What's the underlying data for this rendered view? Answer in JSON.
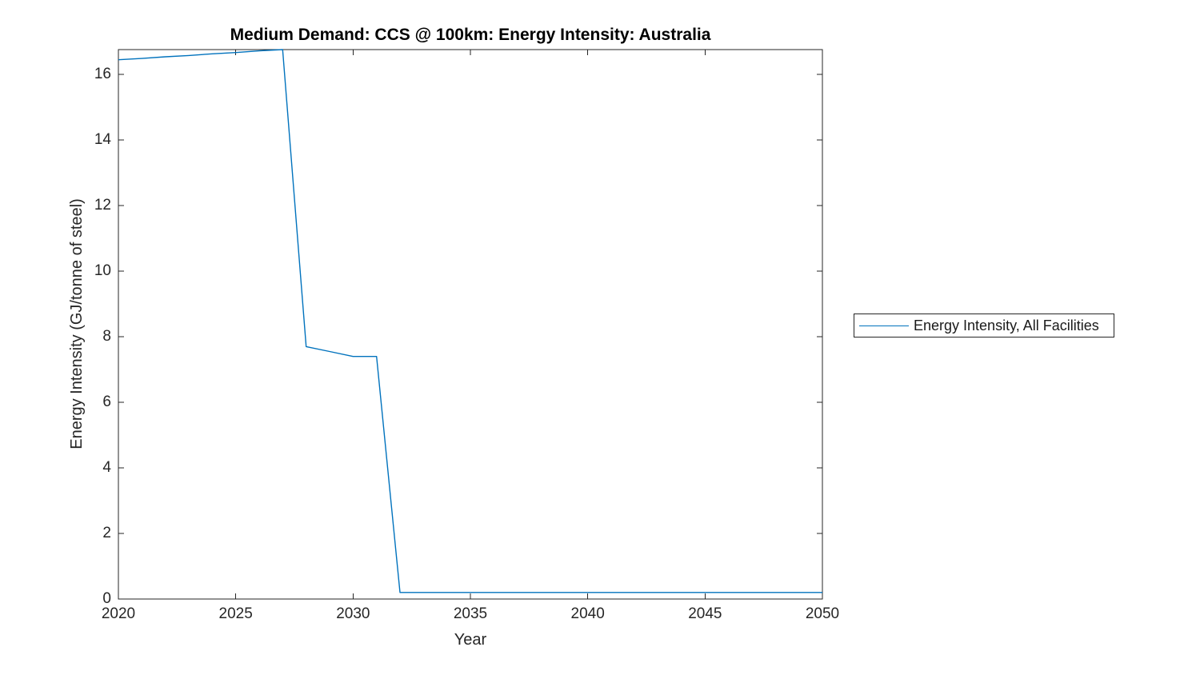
{
  "figure": {
    "background": "#ffffff"
  },
  "chart_data": {
    "type": "line",
    "title": "Medium Demand: CCS @ 100km: Energy Intensity: Australia",
    "xlabel": "Year",
    "ylabel": "Energy Intensity (GJ/tonne of steel)",
    "xlim": [
      2020,
      2050
    ],
    "ylim": [
      0,
      16.76
    ],
    "x_ticks": [
      2020,
      2025,
      2030,
      2035,
      2040,
      2045,
      2050
    ],
    "y_ticks": [
      0,
      2,
      4,
      6,
      8,
      10,
      12,
      14,
      16
    ],
    "grid": false,
    "box": true,
    "legend_position": "outside-right",
    "series": [
      {
        "name": "Energy Intensity, All Facilities",
        "color": "#0072BD",
        "x": [
          2020,
          2021,
          2022,
          2023,
          2024,
          2025,
          2026,
          2027,
          2028,
          2029,
          2030,
          2031,
          2032,
          2033,
          2034,
          2035,
          2036,
          2037,
          2038,
          2039,
          2040,
          2041,
          2042,
          2043,
          2044,
          2045,
          2046,
          2047,
          2048,
          2049,
          2050
        ],
        "y": [
          16.45,
          16.49,
          16.54,
          16.58,
          16.63,
          16.67,
          16.72,
          16.76,
          7.7,
          7.55,
          7.4,
          7.4,
          0.2,
          0.2,
          0.2,
          0.2,
          0.2,
          0.2,
          0.2,
          0.2,
          0.2,
          0.2,
          0.2,
          0.2,
          0.2,
          0.2,
          0.2,
          0.2,
          0.2,
          0.2,
          0.2
        ]
      }
    ]
  },
  "legend": {
    "entries": [
      {
        "label": "Energy Intensity, All Facilities",
        "color": "#0072BD"
      }
    ]
  },
  "colors": {
    "axis": "#262626",
    "tick_text": "#262626",
    "title_text": "#000000",
    "series_blue": "#0072BD"
  }
}
